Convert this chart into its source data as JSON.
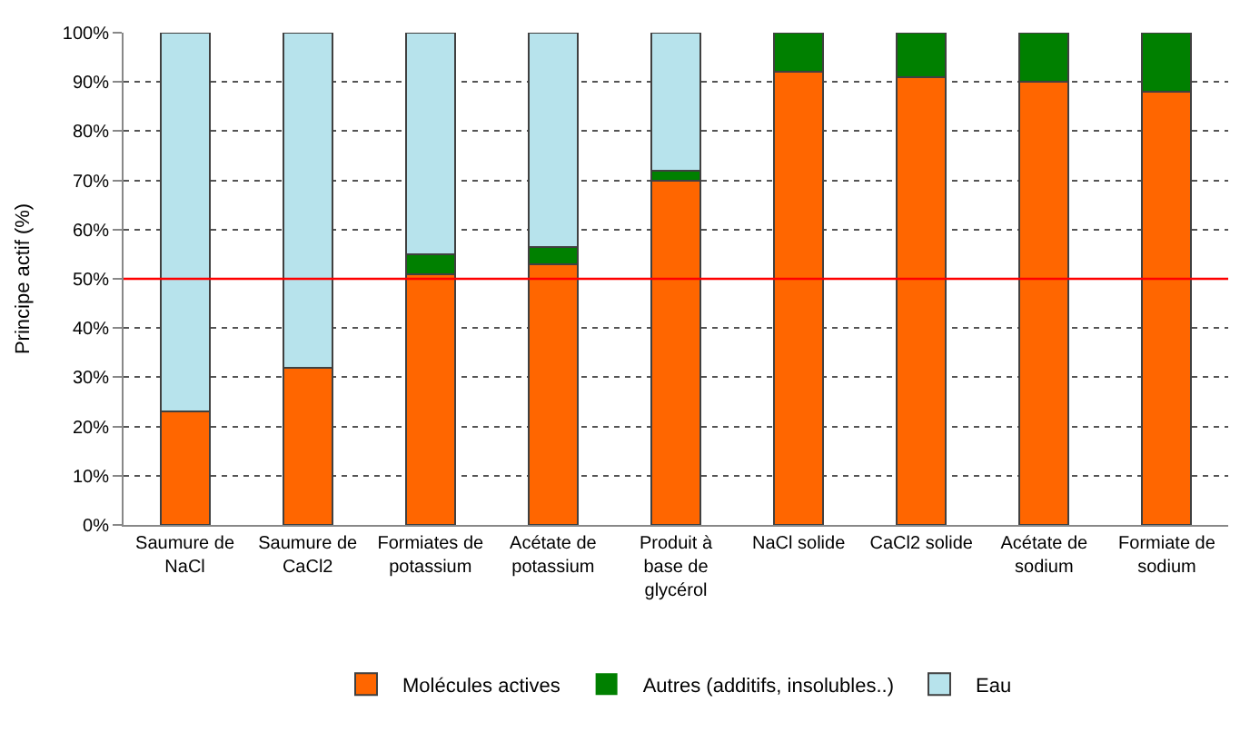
{
  "chart_data": {
    "type": "bar",
    "stacked": true,
    "ylabel": "Principe actif (%)",
    "categories": [
      "Saumure de NaCl",
      "Saumure de CaCl2",
      "Formiates de potassium",
      "Acétate de potassium",
      "Produit à base de glycérol",
      "NaCl solide",
      "CaCl2 solide",
      "Acétate de sodium",
      "Formiate de sodium"
    ],
    "series": [
      {
        "name": "Molécules actives",
        "color": "#ff6600",
        "values": [
          23,
          32,
          51,
          53,
          70,
          92,
          91,
          90,
          88
        ]
      },
      {
        "name": "Autres (additifs, insolubles..)",
        "color": "#008000",
        "values": [
          0,
          0,
          4,
          3.5,
          2,
          8,
          9,
          10,
          12
        ]
      },
      {
        "name": "Eau",
        "color": "#b7e3ec",
        "values": [
          77,
          68,
          45,
          43.5,
          28,
          0,
          0,
          0,
          0
        ]
      }
    ],
    "ylim": [
      0,
      100
    ],
    "yticks": [
      {
        "value": 0,
        "label": "0%"
      },
      {
        "value": 10,
        "label": "10%"
      },
      {
        "value": 20,
        "label": "20%"
      },
      {
        "value": 30,
        "label": "30%"
      },
      {
        "value": 40,
        "label": "40%"
      },
      {
        "value": 50,
        "label": "50%"
      },
      {
        "value": 60,
        "label": "60%"
      },
      {
        "value": 70,
        "label": "70%"
      },
      {
        "value": 80,
        "label": "80%"
      },
      {
        "value": 90,
        "label": "90%"
      },
      {
        "value": 100,
        "label": "100%"
      }
    ],
    "grid": "y",
    "legend": "bottom",
    "ref_lines": [
      {
        "axis": "y",
        "value": 50,
        "color": "#ff0000"
      }
    ]
  }
}
